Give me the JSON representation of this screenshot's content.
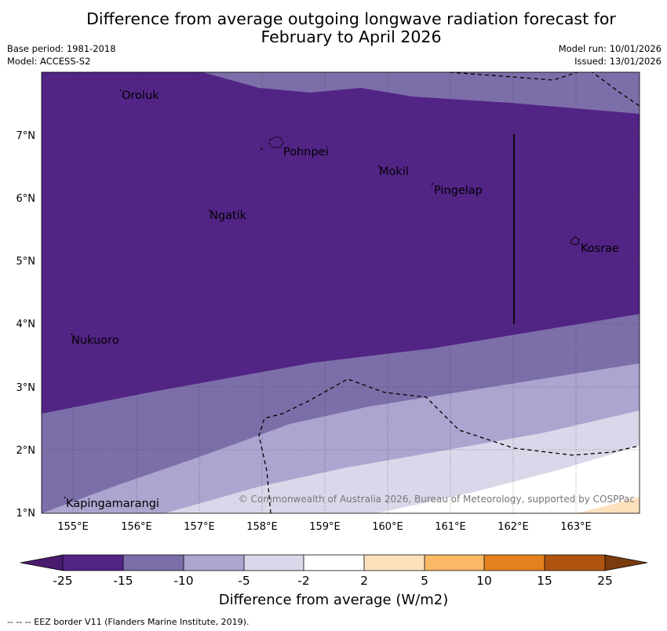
{
  "title_line1": "Difference from average outgoing longwave radiation forecast for",
  "title_line2": "February to April 2026",
  "base_period": "Base period: 1981-2018",
  "model": "Model: ACCESS-S2",
  "model_run": "Model run: 10/01/2026",
  "issued": "Issued: 13/01/2026",
  "copyright": "© Commonwealth of Australia 2026, Bureau of Meteorology, supported by COSPPac",
  "lon_labels": [
    "155°E",
    "156°E",
    "157°E",
    "158°E",
    "159°E",
    "160°E",
    "161°E",
    "162°E",
    "163°E"
  ],
  "lat_labels": [
    "7°N",
    "6°N",
    "5°N",
    "4°N",
    "3°N",
    "2°N",
    "1°N"
  ],
  "places": [
    {
      "name": "Oroluk",
      "lon": 155.75,
      "lat": 7.7
    },
    {
      "name": "Pohnpei",
      "lon": 158.3,
      "lat": 6.9
    },
    {
      "name": "Mokil",
      "lon": 159.8,
      "lat": 6.4
    },
    {
      "name": "Pingelap",
      "lon": 160.7,
      "lat": 6.2
    },
    {
      "name": "Ngatik",
      "lon": 157.1,
      "lat": 5.8
    },
    {
      "name": "Kosrae",
      "lon": 163.0,
      "lat": 5.3
    },
    {
      "name": "Nukuoro",
      "lon": 154.95,
      "lat": 3.85
    },
    {
      "name": "Kapingamarangi",
      "lon": 154.8,
      "lat": 1.1
    }
  ],
  "colorbar": {
    "ticks": [
      "-25",
      "-15",
      "-10",
      "-5",
      "-2",
      "2",
      "5",
      "10",
      "15",
      "25"
    ],
    "colors": [
      "#4a1a6f",
      "#522485",
      "#7c6ea8",
      "#aba5cf",
      "#d8d8ea",
      "#ffffff",
      "#fde1bd",
      "#fbb865",
      "#e3821e",
      "#ae5410",
      "#7a3b0d"
    ],
    "label": "Difference from average (W/m2)"
  },
  "eez_note": "--  --  -- EEZ border V11 (Flanders Marine Institute, 2019)."
}
